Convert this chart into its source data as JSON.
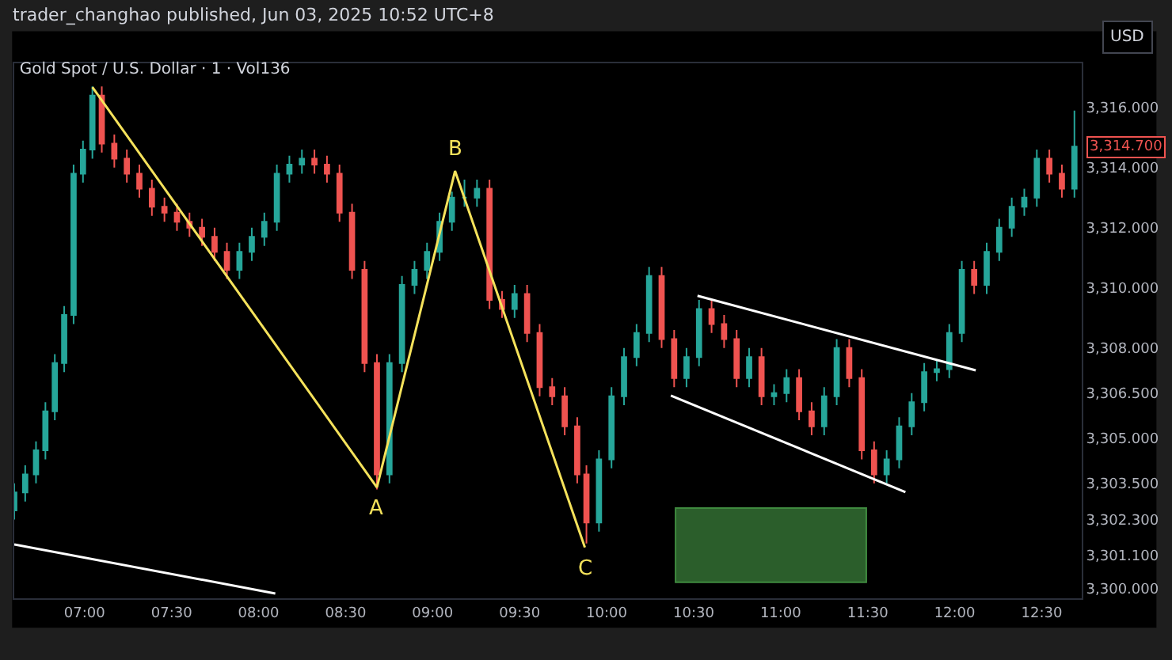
{
  "chart_data": {
    "type": "candlestick",
    "title": "Gold Spot / U.S. Dollar · 1 · Vol136",
    "annotations": [
      "trader_changhao published, Jun 03, 2025 10:52 UTC+8",
      "USD",
      "3,314.700",
      {
        "text": "A",
        "x": 8.68,
        "y": 3303.37
      },
      {
        "text": "B",
        "x": 9.129,
        "y": 3313.89
      },
      {
        "text": "C",
        "x": 9.875,
        "y": 3301.37
      }
    ],
    "x": [
      6.596,
      6.659,
      6.721,
      6.775,
      6.829,
      6.883,
      6.937,
      6.991,
      7.045,
      7.099,
      7.171,
      7.243,
      7.315,
      7.387,
      7.459,
      7.531,
      7.603,
      7.675,
      7.747,
      7.818,
      7.89,
      7.961,
      8.033,
      8.105,
      8.177,
      8.249,
      8.321,
      8.393,
      8.465,
      8.537,
      8.609,
      8.68,
      8.752,
      8.824,
      8.896,
      8.968,
      9.04,
      9.111,
      9.183,
      9.255,
      9.327,
      9.399,
      9.471,
      9.543,
      9.615,
      9.687,
      9.759,
      9.831,
      9.884,
      9.956,
      10.028,
      10.1,
      10.172,
      10.244,
      10.316,
      10.388,
      10.459,
      10.531,
      10.603,
      10.675,
      10.747,
      10.819,
      10.89,
      10.962,
      11.034,
      11.106,
      11.178,
      11.25,
      11.322,
      11.394,
      11.466,
      11.537,
      11.609,
      11.681,
      11.753,
      11.825,
      11.897,
      11.969,
      12.041,
      12.112,
      12.184,
      12.256,
      12.328,
      12.4,
      12.472,
      12.544,
      12.616,
      12.688
    ],
    "ohlc": [
      [
        3302.6,
        3303.5,
        3302.3,
        3303.2
      ],
      [
        3303.2,
        3304.1,
        3302.9,
        3303.8
      ],
      [
        3303.8,
        3304.9,
        3303.5,
        3304.6
      ],
      [
        3304.6,
        3306.2,
        3304.3,
        3305.9
      ],
      [
        3305.9,
        3307.8,
        3305.6,
        3307.5
      ],
      [
        3307.5,
        3309.4,
        3307.2,
        3309.1
      ],
      [
        3309.1,
        3314.1,
        3308.8,
        3313.8
      ],
      [
        3313.8,
        3314.9,
        3313.5,
        3314.6
      ],
      [
        3314.6,
        3316.7,
        3314.3,
        3316.4
      ],
      [
        3316.4,
        3316.7,
        3314.5,
        3314.8
      ],
      [
        3314.8,
        3315.1,
        3314.0,
        3314.3
      ],
      [
        3314.3,
        3314.6,
        3313.5,
        3313.8
      ],
      [
        3313.8,
        3314.1,
        3313.0,
        3313.3
      ],
      [
        3313.3,
        3313.6,
        3312.4,
        3312.7
      ],
      [
        3312.7,
        3313.0,
        3312.2,
        3312.5
      ],
      [
        3312.5,
        3312.8,
        3311.9,
        3312.2
      ],
      [
        3312.2,
        3312.5,
        3311.7,
        3312.0
      ],
      [
        3312.0,
        3312.3,
        3311.4,
        3311.7
      ],
      [
        3311.7,
        3312.0,
        3310.9,
        3311.2
      ],
      [
        3311.2,
        3311.5,
        3310.3,
        3310.6
      ],
      [
        3310.6,
        3311.5,
        3310.3,
        3311.2
      ],
      [
        3311.2,
        3312.0,
        3310.9,
        3311.7
      ],
      [
        3311.7,
        3312.5,
        3311.4,
        3312.2
      ],
      [
        3312.2,
        3314.1,
        3311.9,
        3313.8
      ],
      [
        3313.8,
        3314.4,
        3313.5,
        3314.1
      ],
      [
        3314.1,
        3314.6,
        3313.8,
        3314.3
      ],
      [
        3314.3,
        3314.6,
        3313.8,
        3314.1
      ],
      [
        3314.1,
        3314.4,
        3313.5,
        3313.8
      ],
      [
        3313.8,
        3314.1,
        3312.2,
        3312.5
      ],
      [
        3312.5,
        3312.8,
        3310.3,
        3310.6
      ],
      [
        3310.6,
        3310.9,
        3307.2,
        3307.5
      ],
      [
        3307.5,
        3307.8,
        3303.3,
        3303.8
      ],
      [
        3303.8,
        3307.8,
        3303.5,
        3307.5
      ],
      [
        3307.5,
        3310.4,
        3307.2,
        3310.1
      ],
      [
        3310.1,
        3310.9,
        3309.8,
        3310.6
      ],
      [
        3310.6,
        3311.5,
        3310.3,
        3311.2
      ],
      [
        3311.2,
        3312.5,
        3310.9,
        3312.2
      ],
      [
        3312.2,
        3313.2,
        3311.9,
        3313.0
      ],
      [
        3313.0,
        3313.6,
        3312.7,
        3313.0
      ],
      [
        3313.0,
        3313.6,
        3312.7,
        3313.3
      ],
      [
        3313.3,
        3313.6,
        3309.3,
        3309.6
      ],
      [
        3309.6,
        3309.9,
        3309.0,
        3309.3
      ],
      [
        3309.3,
        3310.1,
        3309.0,
        3309.8
      ],
      [
        3309.8,
        3310.1,
        3308.2,
        3308.5
      ],
      [
        3308.5,
        3308.8,
        3306.4,
        3306.7
      ],
      [
        3306.7,
        3307.0,
        3306.1,
        3306.4
      ],
      [
        3306.4,
        3306.7,
        3305.1,
        3305.4
      ],
      [
        3305.4,
        3305.7,
        3303.5,
        3303.8
      ],
      [
        3303.8,
        3304.1,
        3301.5,
        3302.2
      ],
      [
        3302.2,
        3304.6,
        3301.9,
        3304.3
      ],
      [
        3304.3,
        3306.7,
        3304.0,
        3306.4
      ],
      [
        3306.4,
        3308.0,
        3306.1,
        3307.7
      ],
      [
        3307.7,
        3308.8,
        3307.4,
        3308.5
      ],
      [
        3308.5,
        3310.7,
        3308.2,
        3310.4
      ],
      [
        3310.4,
        3310.7,
        3308.0,
        3308.3
      ],
      [
        3308.3,
        3308.6,
        3306.7,
        3307.0
      ],
      [
        3307.0,
        3308.0,
        3306.7,
        3307.7
      ],
      [
        3307.7,
        3309.6,
        3307.4,
        3309.3
      ],
      [
        3309.3,
        3309.6,
        3308.5,
        3308.8
      ],
      [
        3308.8,
        3309.1,
        3308.0,
        3308.3
      ],
      [
        3308.3,
        3308.6,
        3306.7,
        3307.0
      ],
      [
        3307.0,
        3308.0,
        3306.7,
        3307.7
      ],
      [
        3307.7,
        3308.0,
        3306.1,
        3306.4
      ],
      [
        3306.4,
        3306.8,
        3306.1,
        3306.5
      ],
      [
        3306.5,
        3307.3,
        3306.2,
        3307.0
      ],
      [
        3307.0,
        3307.3,
        3305.6,
        3305.9
      ],
      [
        3305.9,
        3306.2,
        3305.1,
        3305.4
      ],
      [
        3305.4,
        3306.7,
        3305.1,
        3306.4
      ],
      [
        3306.4,
        3308.3,
        3306.1,
        3308.0
      ],
      [
        3308.0,
        3308.3,
        3306.7,
        3307.0
      ],
      [
        3307.0,
        3307.3,
        3304.3,
        3304.6
      ],
      [
        3304.6,
        3304.9,
        3303.5,
        3303.8
      ],
      [
        3303.8,
        3304.6,
        3303.5,
        3304.3
      ],
      [
        3304.3,
        3305.7,
        3304.0,
        3305.4
      ],
      [
        3305.4,
        3306.5,
        3305.1,
        3306.2
      ],
      [
        3306.2,
        3307.5,
        3305.9,
        3307.2
      ],
      [
        3307.2,
        3307.6,
        3306.9,
        3307.3
      ],
      [
        3307.3,
        3308.8,
        3307.0,
        3308.5
      ],
      [
        3308.5,
        3310.9,
        3308.2,
        3310.6
      ],
      [
        3310.6,
        3310.9,
        3309.8,
        3310.1
      ],
      [
        3310.1,
        3311.5,
        3309.8,
        3311.2
      ],
      [
        3311.2,
        3312.3,
        3310.9,
        3312.0
      ],
      [
        3312.0,
        3313.0,
        3311.7,
        3312.7
      ],
      [
        3312.7,
        3313.3,
        3312.4,
        3313.0
      ],
      [
        3313.0,
        3314.6,
        3312.7,
        3314.3
      ],
      [
        3314.3,
        3314.6,
        3313.5,
        3313.8
      ],
      [
        3313.8,
        3314.1,
        3313.0,
        3313.3
      ],
      [
        3313.3,
        3315.9,
        3313.0,
        3314.7
      ]
    ],
    "series": [
      {
        "type": "line",
        "color": "#f5e25b",
        "x": [
          7.045,
          8.68,
          9.129,
          9.875
        ],
        "values": [
          3316.68,
          3303.37,
          3313.89,
          3301.37
        ]
      },
      {
        "type": "line",
        "color": "#ffffff",
        "x": [
          6.596,
          8.096
        ],
        "values": [
          3301.47,
          3299.84
        ]
      },
      {
        "type": "line",
        "color": "#ffffff",
        "x": [
          10.522,
          12.121
        ],
        "values": [
          3309.74,
          3307.26
        ]
      },
      {
        "type": "line",
        "color": "#ffffff",
        "x": [
          10.369,
          11.717
        ],
        "values": [
          3306.42,
          3303.21
        ]
      },
      {
        "type": "bar",
        "color": "#2b5e2b",
        "x": [
          10.944
        ],
        "base": [
          3300.21
        ],
        "values": [
          2.47
        ]
      }
    ],
    "xlim": [
      6.596,
      12.73
    ],
    "xticks": [
      {
        "value": 7,
        "label": "07:00"
      },
      {
        "value": 7.5,
        "label": "07:30"
      },
      {
        "value": 8,
        "label": "08:00"
      },
      {
        "value": 8.5,
        "label": "08:30"
      },
      {
        "value": 9,
        "label": "09:00"
      },
      {
        "value": 9.5,
        "label": "09:30"
      },
      {
        "value": 10,
        "label": "10:00"
      },
      {
        "value": 10.5,
        "label": "10:30"
      },
      {
        "value": 11,
        "label": "11:00"
      },
      {
        "value": 11.5,
        "label": "11:30"
      },
      {
        "value": 12,
        "label": "12:00"
      },
      {
        "value": 12.5,
        "label": "12:30"
      }
    ],
    "ylim": [
      3299.68,
      3317.47
    ],
    "yticks": [
      {
        "value": 3300,
        "label": "3,300.000"
      },
      {
        "value": 3301.1,
        "label": "3,301.100"
      },
      {
        "value": 3302.3,
        "label": "3,302.300"
      },
      {
        "value": 3303.5,
        "label": "3,303.500"
      },
      {
        "value": 3305,
        "label": "3,305.000"
      },
      {
        "value": 3306.5,
        "label": "3,306.500"
      },
      {
        "value": 3308,
        "label": "3,308.000"
      },
      {
        "value": 3310,
        "label": "3,310.000"
      },
      {
        "value": 3312,
        "label": "3,312.000"
      },
      {
        "value": 3314,
        "label": "3,314.000"
      },
      {
        "value": 3316,
        "label": "3,316.000"
      }
    ],
    "grid": false
  }
}
